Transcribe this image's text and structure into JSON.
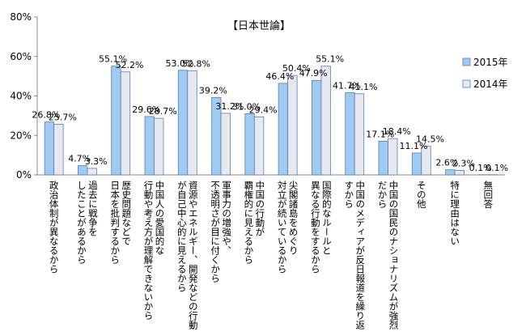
{
  "chart_data": {
    "type": "bar",
    "title": "【日本世論】",
    "ylim": [
      0,
      80
    ],
    "yticks": [
      "0%",
      "20%",
      "40%",
      "60%",
      "80%"
    ],
    "grid": false,
    "legend_position": "right",
    "categories": [
      [
        "政治体制が異なるから"
      ],
      [
        "過去に戦争を",
        "したことがあるから"
      ],
      [
        "歴史問題などで",
        "日本を批判するから"
      ],
      [
        "中国人の愛国的な",
        "行動や考え方が理解できないから"
      ],
      [
        "資源やエネルギー、開発などの行動",
        "が自己中心的に見えるから"
      ],
      [
        "軍事力の増強や、",
        "不透明さが目に付くから"
      ],
      [
        "中国の行動が",
        "覇権的に見えるから"
      ],
      [
        "尖閣諸島をめぐり",
        "対立が続いているから"
      ],
      [
        "国際的なルールと",
        "異なる行動をするから"
      ],
      [
        "中国のメディアが反日報道を繰り返",
        "すから"
      ],
      [
        "中国の国民のナショナリズムが強烈",
        "だから"
      ],
      [
        "その他"
      ],
      [
        "特に理由はない"
      ],
      [
        "無回答"
      ]
    ],
    "series": [
      {
        "name": "2015年",
        "color": "#9fcbf2",
        "values": [
          26.8,
          4.7,
          55.1,
          29.6,
          53.0,
          39.2,
          31.0,
          46.4,
          47.9,
          41.7,
          17.1,
          11.1,
          2.6,
          0.1
        ],
        "labels": [
          "26.8%",
          "4.7%",
          "55.1%",
          "29.6%",
          "53.0%",
          "39.2%",
          "31.0%",
          "46.4%",
          "47.9%",
          "41.7%",
          "17.1%",
          "11.1%",
          "2.6%",
          "0.1%"
        ]
      },
      {
        "name": "2014年",
        "color": "#e6eaf0",
        "values": [
          25.7,
          3.3,
          52.2,
          28.7,
          52.8,
          31.2,
          29.4,
          50.4,
          55.1,
          41.1,
          18.4,
          14.5,
          2.3,
          0.1
        ],
        "labels": [
          "25.7%",
          "3.3%",
          "52.2%",
          "28.7%",
          "52.8%",
          "31.2%",
          "29.4%",
          "50.4%",
          "55.1%",
          "41.1%",
          "18.4%",
          "14.5%",
          "2.3%",
          "0.1%"
        ]
      }
    ]
  }
}
